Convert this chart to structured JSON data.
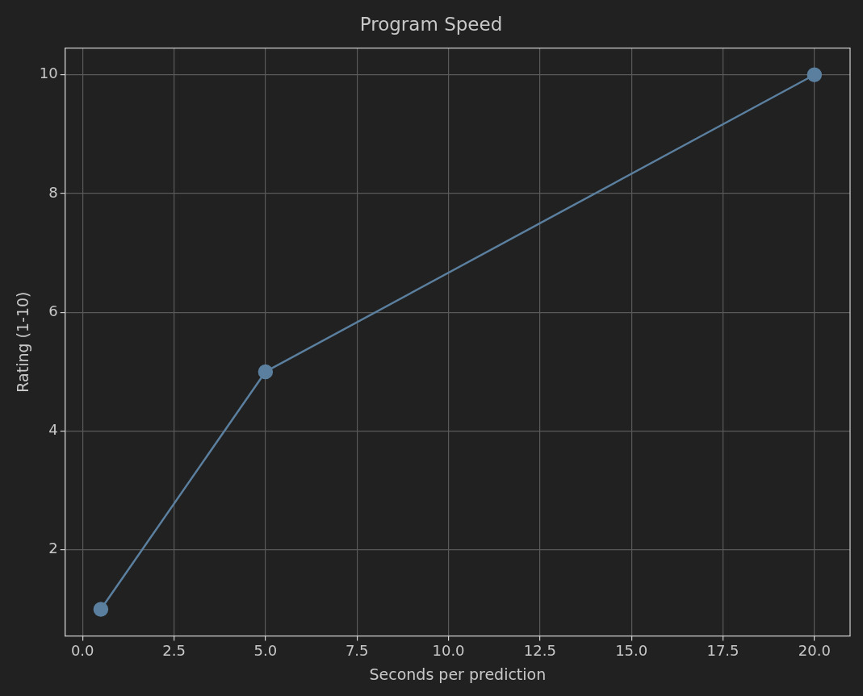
{
  "chart_data": {
    "type": "line",
    "title": "Program Speed",
    "xlabel": "Seconds per prediction",
    "ylabel": "Rating (1-10)",
    "x": [
      0.5,
      5,
      20
    ],
    "series": [
      {
        "color": "#5b7f9e",
        "values": [
          1,
          5,
          10
        ]
      }
    ],
    "xlim": [
      -0.475,
      20.975
    ],
    "xticks": [
      {
        "value": 0,
        "label": "0.0"
      },
      {
        "value": 2.5,
        "label": "2.5"
      },
      {
        "value": 5,
        "label": "5.0"
      },
      {
        "value": 7.5,
        "label": "7.5"
      },
      {
        "value": 10,
        "label": "10.0"
      },
      {
        "value": 12.5,
        "label": "12.5"
      },
      {
        "value": 15,
        "label": "15.0"
      },
      {
        "value": 17.5,
        "label": "17.5"
      },
      {
        "value": 20,
        "label": "20.0"
      }
    ],
    "ylim": [
      0.55,
      10.45
    ],
    "yticks": [
      2,
      4,
      6,
      8,
      10
    ],
    "grid": true,
    "marker": "circle",
    "line_style": "solid",
    "legend": false
  }
}
